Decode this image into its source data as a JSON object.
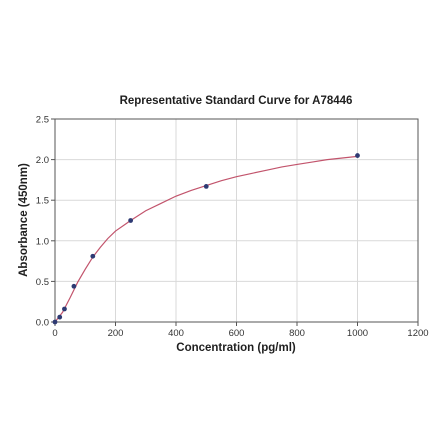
{
  "chart_data": {
    "type": "scatter",
    "title": "Representative Standard Curve for A78446",
    "xlabel": "Concentration (pg/ml)",
    "ylabel": "Absorbance (450nm)",
    "xlim": [
      0,
      1200
    ],
    "ylim": [
      0,
      2.5
    ],
    "xticks": [
      "0",
      "200",
      "400",
      "600",
      "800",
      "1000",
      "1200"
    ],
    "yticks": [
      "0.0",
      "0.5",
      "1.0",
      "1.5",
      "2.0",
      "2.5"
    ],
    "grid": true,
    "legend": "none",
    "points": {
      "x": [
        0,
        15.6,
        31.25,
        62.5,
        125,
        250,
        500,
        1000
      ],
      "y": [
        0.0,
        0.06,
        0.16,
        0.44,
        0.81,
        1.25,
        1.67,
        2.05
      ]
    },
    "fit_curve": {
      "type": "line",
      "x": [
        0,
        25,
        50,
        75,
        100,
        125,
        150,
        175,
        200,
        250,
        300,
        350,
        400,
        450,
        500,
        550,
        600,
        650,
        700,
        750,
        800,
        850,
        900,
        950,
        1000
      ],
      "y": [
        0.0,
        0.12,
        0.3,
        0.49,
        0.65,
        0.8,
        0.92,
        1.03,
        1.12,
        1.25,
        1.37,
        1.46,
        1.55,
        1.62,
        1.68,
        1.74,
        1.79,
        1.83,
        1.87,
        1.91,
        1.94,
        1.97,
        2.0,
        2.02,
        2.04
      ]
    },
    "colors": {
      "points": "#2e3a73",
      "curve": "#c2546c",
      "grid": "#d9d9d9",
      "frame": "#555555"
    }
  }
}
